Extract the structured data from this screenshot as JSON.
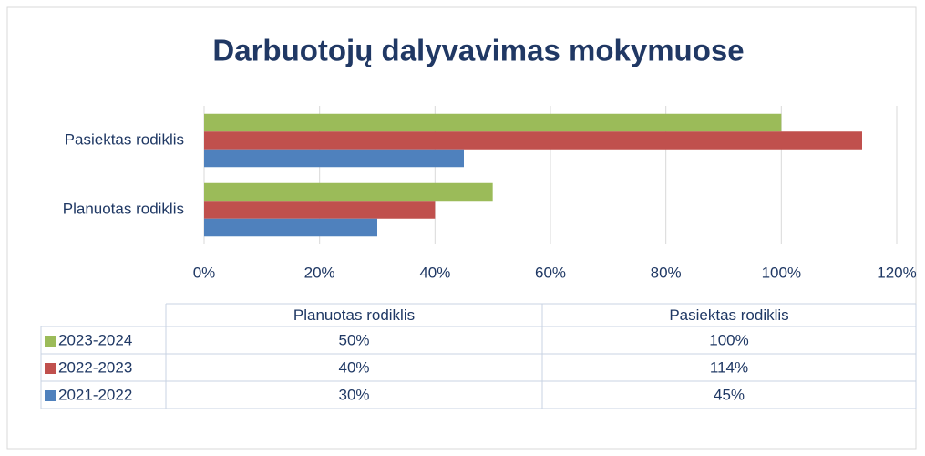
{
  "chart_data": {
    "type": "bar",
    "orientation": "horizontal",
    "title": "Darbuotojų dalyvavimas mokymuose",
    "categories": [
      "Planuotas rodiklis",
      "Pasiektas rodiklis"
    ],
    "series": [
      {
        "name": "2023-2024",
        "color": "#9bbb59",
        "values": [
          50,
          100
        ],
        "value_labels": [
          "50%",
          "100%"
        ]
      },
      {
        "name": "2022-2023",
        "color": "#c0504d",
        "values": [
          40,
          114
        ],
        "value_labels": [
          "40%",
          "114%"
        ]
      },
      {
        "name": "2021-2022",
        "color": "#4f81bd",
        "values": [
          30,
          45
        ],
        "value_labels": [
          "30%",
          "45%"
        ]
      }
    ],
    "xlim": [
      0,
      120
    ],
    "xticks": [
      {
        "value": 0,
        "label": "0%"
      },
      {
        "value": 20,
        "label": "20%"
      },
      {
        "value": 40,
        "label": "40%"
      },
      {
        "value": 60,
        "label": "60%"
      },
      {
        "value": 80,
        "label": "80%"
      },
      {
        "value": 100,
        "label": "100%"
      },
      {
        "value": 120,
        "label": "120%"
      }
    ],
    "grid": true,
    "data_table": true
  }
}
